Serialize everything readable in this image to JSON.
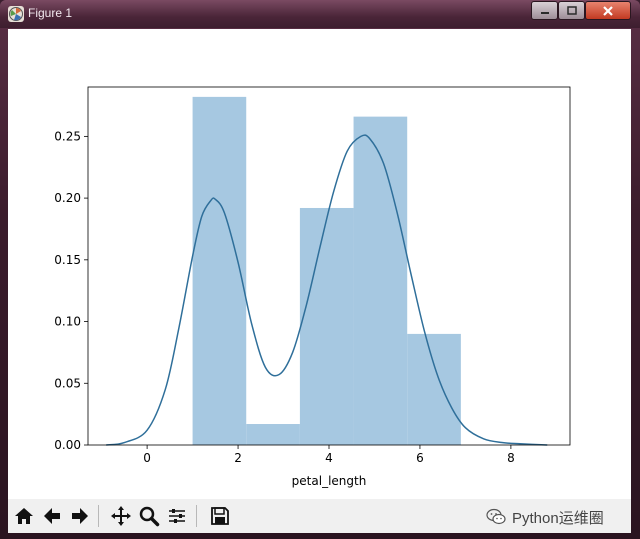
{
  "window": {
    "title": "Figure 1"
  },
  "toolbar": {
    "tools": [
      "home-icon",
      "back-icon",
      "forward-icon",
      "pan-icon",
      "zoom-icon",
      "configure-subplots-icon",
      "save-icon"
    ],
    "watermark": "Python运维圈"
  },
  "colors": {
    "hist": "#a6c8e1",
    "kde": "#2f6f9a"
  },
  "chart_data": {
    "type": "histogram",
    "xlabel": "petal_length",
    "ylabel": "",
    "xlim": [
      -1.3,
      9.3
    ],
    "ylim": [
      0,
      0.29
    ],
    "xticks": [
      0,
      2,
      4,
      6,
      8
    ],
    "yticks": [
      0.0,
      0.05,
      0.1,
      0.15,
      0.2,
      0.25
    ],
    "xtick_labels": [
      "0",
      "2",
      "4",
      "6",
      "8"
    ],
    "ytick_labels": [
      "0.00",
      "0.05",
      "0.10",
      "0.15",
      "0.20",
      "0.25"
    ],
    "bins": [
      {
        "x0": 1.0,
        "x1": 2.18,
        "height": 0.282
      },
      {
        "x0": 2.18,
        "x1": 3.36,
        "height": 0.017
      },
      {
        "x0": 3.36,
        "x1": 4.54,
        "height": 0.192
      },
      {
        "x0": 4.54,
        "x1": 5.72,
        "height": 0.266
      },
      {
        "x0": 5.72,
        "x1": 6.9,
        "height": 0.09
      }
    ],
    "kde": {
      "x": [
        -0.9,
        -0.5,
        0.0,
        0.4,
        0.7,
        1.0,
        1.2,
        1.4,
        1.5,
        1.7,
        2.0,
        2.3,
        2.6,
        2.9,
        3.2,
        3.5,
        3.8,
        4.1,
        4.4,
        4.7,
        4.9,
        5.2,
        5.5,
        5.8,
        6.1,
        6.4,
        6.7,
        7.0,
        7.4,
        7.8,
        8.2,
        8.8
      ],
      "y": [
        0.0,
        0.002,
        0.012,
        0.045,
        0.095,
        0.153,
        0.185,
        0.198,
        0.199,
        0.188,
        0.148,
        0.098,
        0.063,
        0.057,
        0.075,
        0.113,
        0.16,
        0.205,
        0.238,
        0.25,
        0.248,
        0.228,
        0.188,
        0.139,
        0.092,
        0.055,
        0.03,
        0.014,
        0.005,
        0.002,
        0.001,
        0.0
      ]
    },
    "grid": false
  }
}
